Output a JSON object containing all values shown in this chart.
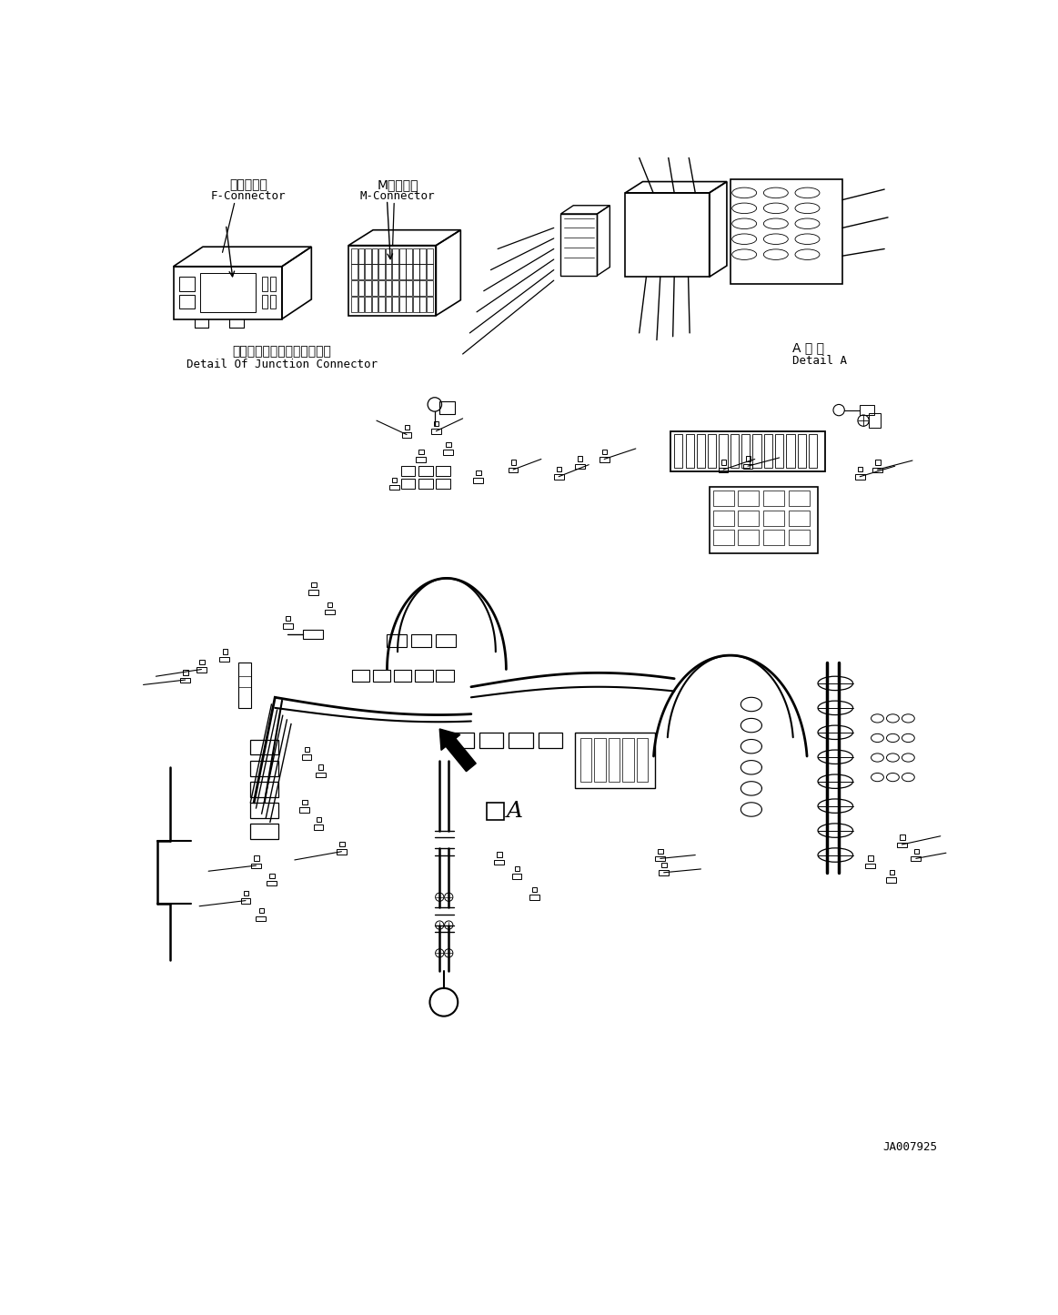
{
  "bg_color": "#ffffff",
  "fig_width": 11.63,
  "fig_height": 14.45,
  "dpi": 100,
  "label_f_jp": "フコネクタ",
  "label_f_en": "F-Connector",
  "label_m_jp": "Mコネクタ",
  "label_m_en": "M-Connector",
  "label_junc_jp": "ジャンクションコネクタ詳細",
  "label_junc_en": "Detail Of Junction Connector",
  "label_detA_jp": "A 詳 細",
  "label_detA_en": "Detail A",
  "label_A": "A",
  "part_number": "JA007925",
  "black": "#000000",
  "gray": "#888888"
}
